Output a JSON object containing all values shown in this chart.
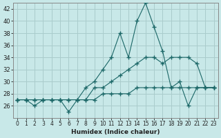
{
  "xlabel": "Humidex (Indice chaleur)",
  "ylabel": "",
  "bg_color": "#c8e8e8",
  "line_color": "#1a6666",
  "grid_color": "#aacccc",
  "xlim": [
    -0.5,
    23.5
  ],
  "ylim": [
    24,
    43
  ],
  "xticks": [
    0,
    1,
    2,
    3,
    4,
    5,
    6,
    7,
    8,
    9,
    10,
    11,
    12,
    13,
    14,
    15,
    16,
    17,
    18,
    19,
    20,
    21,
    22,
    23
  ],
  "yticks": [
    26,
    28,
    30,
    32,
    34,
    36,
    38,
    40,
    42
  ],
  "line1_x": [
    0,
    1,
    2,
    3,
    4,
    5,
    6,
    7,
    8,
    9,
    10,
    11,
    12,
    13,
    14,
    15,
    16,
    17,
    18,
    19,
    20,
    21,
    22,
    23
  ],
  "line1_y": [
    27,
    27,
    26,
    27,
    27,
    27,
    27,
    27,
    29,
    30,
    32,
    34,
    38,
    34,
    40,
    43,
    39,
    35,
    29,
    30,
    26,
    29,
    29,
    29
  ],
  "line2_x": [
    0,
    1,
    2,
    3,
    4,
    5,
    6,
    7,
    8,
    9,
    10,
    11,
    12,
    13,
    14,
    15,
    16,
    17,
    18,
    19,
    20,
    21,
    22,
    23
  ],
  "line2_y": [
    27,
    27,
    27,
    27,
    27,
    27,
    25,
    27,
    27,
    29,
    29,
    30,
    31,
    32,
    33,
    34,
    34,
    33,
    34,
    34,
    34,
    33,
    29,
    29
  ],
  "line3_x": [
    0,
    1,
    2,
    3,
    4,
    5,
    6,
    7,
    8,
    9,
    10,
    11,
    12,
    13,
    14,
    15,
    16,
    17,
    18,
    19,
    20,
    21,
    22,
    23
  ],
  "line3_y": [
    27,
    27,
    27,
    27,
    27,
    27,
    27,
    27,
    27,
    27,
    28,
    28,
    28,
    28,
    29,
    29,
    29,
    29,
    29,
    29,
    29,
    29,
    29,
    29
  ]
}
